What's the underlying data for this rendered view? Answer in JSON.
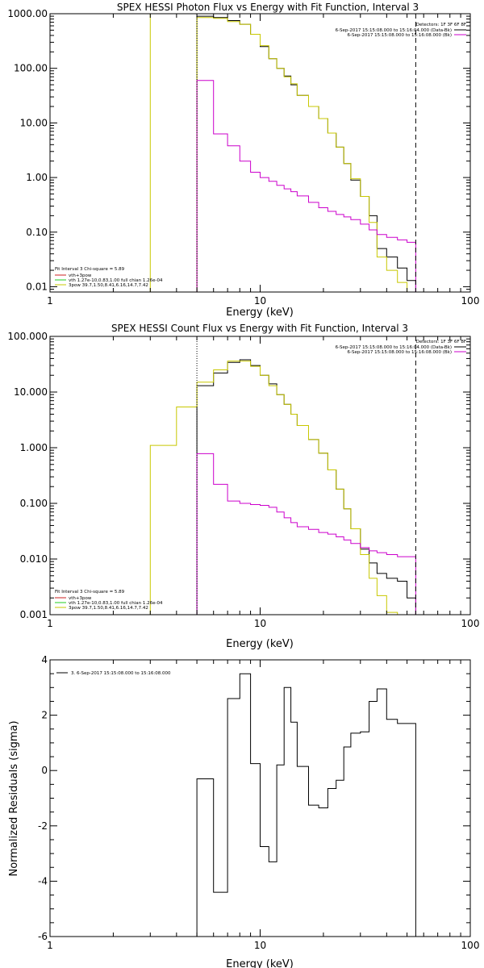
{
  "chart_data": [
    {
      "type": "line",
      "title": "SPEX HESSI Photon Flux vs Energy with Fit Function, Interval 3",
      "xlabel": "Energy (keV)",
      "ylabel": "",
      "x_scale": "log",
      "y_scale": "log",
      "xlim": [
        1,
        100
      ],
      "ylim": [
        0.008,
        1000
      ],
      "x_tick_labels": [
        "1",
        "10",
        "100"
      ],
      "y_tick_labels": [
        "0.01",
        "0.10",
        "1.00",
        "10.00",
        "100.00",
        "1000.00"
      ],
      "legend_topright": [
        "Detectors: 1F 3F 6F 8F",
        "6-Sep-2017 15:15:08.000 to 15:16:04.000 (Data-Bk)",
        "6-Sep-2017 15:15:08.000 to 15:16:08.000 (Bk)"
      ],
      "legend_bottomleft": [
        "Fit Interval 3   Chi-square = 5.89",
        "vth+3pow",
        "vth 1.27e-10,0.83,1.00  full chian 1.26e-04",
        "3pow 39.7,1.50,8.41,6.16,14.7,7.42"
      ],
      "markers": {
        "yellow_vertical_x": 3.0,
        "dotted_vertical_x": 5.0,
        "dashed_vertical_x": 55.0
      },
      "series": [
        {
          "color": "#000000",
          "edges": [
            5,
            6,
            7,
            8,
            9,
            10,
            11,
            12,
            13,
            14,
            15,
            17,
            19,
            21,
            23,
            25,
            27,
            30,
            33,
            36,
            40,
            45,
            50,
            55
          ],
          "values": [
            900,
            850,
            750,
            640,
            420,
            250,
            150,
            100,
            72,
            50,
            32,
            20,
            12,
            6.5,
            3.6,
            1.8,
            0.9,
            0.45,
            0.2,
            0.05,
            0.035,
            0.022,
            0.013
          ]
        },
        {
          "color": "#c8c800",
          "edges": [
            5,
            6,
            7,
            8,
            9,
            10,
            11,
            12,
            13,
            14,
            15,
            17,
            19,
            21,
            23,
            25,
            27,
            30,
            33,
            36,
            40,
            45,
            50,
            55
          ],
          "values": [
            850,
            820,
            720,
            640,
            420,
            260,
            150,
            100,
            70,
            52,
            32,
            20,
            12,
            6.5,
            3.6,
            1.8,
            0.95,
            0.45,
            0.15,
            0.035,
            0.02,
            0.012,
            0.008
          ]
        },
        {
          "color": "#cc00cc",
          "edges": [
            5,
            6,
            7,
            8,
            9,
            10,
            11,
            12,
            13,
            14,
            15,
            17,
            19,
            21,
            23,
            25,
            27,
            30,
            33,
            36,
            40,
            45,
            50,
            55
          ],
          "values": [
            60,
            6.3,
            3.8,
            2.0,
            1.25,
            1.0,
            0.85,
            0.72,
            0.62,
            0.55,
            0.46,
            0.35,
            0.28,
            0.24,
            0.21,
            0.19,
            0.17,
            0.14,
            0.11,
            0.09,
            0.08,
            0.072,
            0.065
          ]
        }
      ]
    },
    {
      "type": "line",
      "title": "SPEX HESSI Count Flux vs Energy with Fit Function, Interval 3",
      "xlabel": "Energy (keV)",
      "ylabel": "",
      "x_scale": "log",
      "y_scale": "log",
      "xlim": [
        1,
        100
      ],
      "ylim": [
        0.001,
        100
      ],
      "x_tick_labels": [
        "1",
        "10",
        "100"
      ],
      "y_tick_labels": [
        "0.001",
        "0.010",
        "0.100",
        "1.000",
        "10.000",
        "100.000"
      ],
      "legend_topright": [
        "Detectors: 1F 3F 6F 8F",
        "6-Sep-2017 15:15:08.000 to 15:16:04.000 (Data-Bk)",
        "6-Sep-2017 15:15:08.000 to 15:16:08.000 (Bk)"
      ],
      "legend_bottomleft": [
        "Fit Interval 3   Chi-square = 5.89",
        "vth+3pow",
        "vth 1.27e-10,0.83,1.00  full chian 1.26e-04",
        "3pow 39.7,1.50,8.41,6.16,14.7,7.42"
      ],
      "markers": {
        "dotted_vertical_x": 5.0,
        "dashed_vertical_x": 55.0
      },
      "series": [
        {
          "color": "#000000",
          "edges": [
            5,
            6,
            7,
            8,
            9,
            10,
            11,
            12,
            13,
            14,
            15,
            17,
            19,
            21,
            23,
            25,
            27,
            30,
            33,
            36,
            40,
            45,
            50,
            55
          ],
          "values": [
            13,
            22,
            34,
            38,
            30,
            20,
            14,
            9,
            6.0,
            4.0,
            2.5,
            1.4,
            0.8,
            0.4,
            0.18,
            0.08,
            0.035,
            0.015,
            0.0085,
            0.0055,
            0.0045,
            0.004,
            0.002
          ]
        },
        {
          "color": "#c8c800",
          "edges": [
            3,
            4,
            5,
            6,
            7,
            8,
            9,
            10,
            11,
            12,
            13,
            14,
            15,
            17,
            19,
            21,
            23,
            25,
            27,
            30,
            33,
            36,
            40,
            45
          ],
          "values": [
            1.1,
            5.4,
            15,
            25,
            36,
            36,
            29,
            20,
            13,
            9,
            6.0,
            4.0,
            2.5,
            1.4,
            0.8,
            0.4,
            0.18,
            0.08,
            0.035,
            0.012,
            0.0045,
            0.0022,
            0.0011
          ]
        },
        {
          "color": "#cc00cc",
          "edges": [
            5,
            6,
            7,
            8,
            9,
            10,
            11,
            12,
            13,
            14,
            15,
            17,
            19,
            21,
            23,
            25,
            27,
            30,
            33,
            36,
            40,
            45,
            50,
            55
          ],
          "values": [
            0.78,
            0.22,
            0.11,
            0.1,
            0.095,
            0.092,
            0.085,
            0.07,
            0.055,
            0.045,
            0.038,
            0.034,
            0.03,
            0.028,
            0.025,
            0.022,
            0.019,
            0.016,
            0.014,
            0.013,
            0.012,
            0.011,
            0.011
          ]
        }
      ]
    },
    {
      "type": "line",
      "title": "",
      "xlabel": "Energy (keV)",
      "ylabel": "Normalized Residuals (sigma)",
      "x_scale": "log",
      "y_scale": "linear",
      "xlim": [
        1,
        100
      ],
      "ylim": [
        -6,
        4
      ],
      "x_tick_labels": [
        "1",
        "10",
        "100"
      ],
      "y_tick_labels": [
        "-6",
        "-4",
        "-2",
        "0",
        "2",
        "4"
      ],
      "legend": [
        "3.  6-Sep-2017 15:15:08.000 to 15:16:08.000"
      ],
      "series": [
        {
          "color": "#000000",
          "edges": [
            5,
            6,
            7,
            8,
            9,
            10,
            11,
            12,
            13,
            14,
            15,
            17,
            19,
            21,
            23,
            25,
            27,
            30,
            33,
            36,
            40,
            45,
            50,
            55
          ],
          "values": [
            -0.3,
            -4.4,
            2.6,
            3.5,
            0.25,
            -2.75,
            -3.3,
            0.2,
            3.0,
            1.75,
            0.15,
            -1.25,
            -1.35,
            -0.65,
            -0.35,
            0.85,
            1.35,
            1.4,
            2.5,
            2.95,
            1.85,
            1.7,
            1.7
          ]
        }
      ]
    }
  ]
}
